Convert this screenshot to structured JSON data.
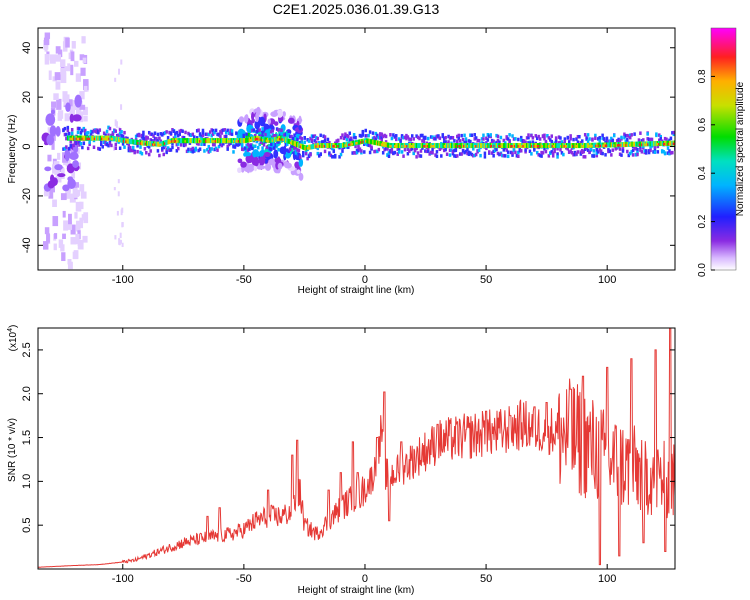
{
  "page_title": "C2E1.2025.036.01.39.G13",
  "colors": {
    "snr_line": "#e53935",
    "axis": "#000000"
  },
  "chart_data": [
    {
      "type": "heatmap",
      "title": "C2E1.2025.036.01.39.G13",
      "xlabel": "Height of straight line (km)",
      "ylabel": "Frequency (Hz)",
      "xlim": [
        -135,
        128
      ],
      "ylim": [
        -50,
        48
      ],
      "x_ticks": [
        -100,
        -50,
        0,
        50,
        100
      ],
      "x_tick_labels": [
        "-100",
        "-50",
        "0",
        "50",
        "100"
      ],
      "y_ticks": [
        -40,
        -20,
        0,
        20,
        40
      ],
      "y_tick_labels": [
        "-40",
        "-20",
        "0",
        "20",
        "40"
      ],
      "colorbar": {
        "label": "Normalized spectral amplitude",
        "range": [
          0,
          1
        ],
        "ticks": [
          0,
          0.2,
          0.4,
          0.6,
          0.8
        ],
        "tick_labels": [
          "0.0",
          "0.2",
          "0.4",
          "0.6",
          "0.8"
        ],
        "colormap": "rainbow (white-purple-blue-cyan-green-yellow-red-magenta)"
      },
      "band_center_hz": [
        [
          -118,
          3
        ],
        [
          -105,
          3
        ],
        [
          -100,
          2
        ],
        [
          -92,
          1
        ],
        [
          -85,
          0.5
        ],
        [
          -80,
          2
        ],
        [
          -72,
          2
        ],
        [
          -60,
          2
        ],
        [
          -50,
          2
        ],
        [
          -45,
          3
        ],
        [
          -40,
          2
        ],
        [
          -35,
          3
        ],
        [
          -30,
          1
        ],
        [
          -25,
          -1
        ],
        [
          -20,
          0
        ],
        [
          -10,
          0
        ],
        [
          0,
          2
        ],
        [
          10,
          0
        ],
        [
          30,
          0
        ],
        [
          60,
          0
        ],
        [
          90,
          0
        ],
        [
          128,
          1
        ]
      ]
    },
    {
      "type": "line",
      "xlabel": "Height of straight line (km)",
      "ylabel": "SNR (10 * v/v)",
      "y_scale_note": "(x10",
      "y_scale_exp": "4",
      "xlim": [
        -135,
        128
      ],
      "ylim": [
        0,
        2.75
      ],
      "x_ticks": [
        -100,
        -50,
        0,
        50,
        100
      ],
      "x_tick_labels": [
        "-100",
        "-50",
        "0",
        "50",
        "100"
      ],
      "y_ticks": [
        0.5,
        1.0,
        1.5,
        2.0,
        2.5
      ],
      "y_tick_labels": [
        "0.5",
        "1.0",
        "1.5",
        "2.0",
        "2.5"
      ],
      "series": [
        {
          "color": "#e53935",
          "x": [
            -135,
            -120,
            -110,
            -100,
            -95,
            -90,
            -85,
            -80,
            -75,
            -70,
            -65,
            -60,
            -55,
            -50,
            -45,
            -40,
            -35,
            -30,
            -27,
            -25,
            -20,
            -15,
            -10,
            -5,
            0,
            3,
            5,
            7,
            8,
            10,
            15,
            20,
            25,
            30,
            40,
            50,
            55,
            60,
            65,
            70,
            75,
            80,
            85,
            90,
            95,
            100,
            105,
            110,
            115,
            120,
            125,
            128
          ],
          "y": [
            0.02,
            0.04,
            0.05,
            0.08,
            0.1,
            0.15,
            0.2,
            0.25,
            0.3,
            0.33,
            0.36,
            0.38,
            0.4,
            0.45,
            0.55,
            0.6,
            0.6,
            0.65,
            0.9,
            0.5,
            0.4,
            0.55,
            0.7,
            0.8,
            0.9,
            1.05,
            1.2,
            1.6,
            1.1,
            1.05,
            1.15,
            1.25,
            1.35,
            1.45,
            1.5,
            1.55,
            1.55,
            1.6,
            1.65,
            1.6,
            1.6,
            1.55,
            1.5,
            1.45,
            1.35,
            1.25,
            1.2,
            1.15,
            1.1,
            1.05,
            1.0,
            1.0
          ],
          "peaks": [
            [
              -65,
              0.6
            ],
            [
              -60,
              0.7
            ],
            [
              -40,
              0.9
            ],
            [
              -30,
              1.3
            ],
            [
              -28,
              1.47
            ],
            [
              -15,
              0.9
            ],
            [
              -10,
              1.1
            ],
            [
              -5,
              1.45
            ],
            [
              -3,
              1.1
            ],
            [
              5,
              1.5
            ],
            [
              8,
              2.02
            ],
            [
              10,
              0.55
            ],
            [
              15,
              1.45
            ],
            [
              30,
              1.65
            ],
            [
              50,
              1.8
            ],
            [
              60,
              1.75
            ],
            [
              70,
              1.85
            ],
            [
              75,
              1.9
            ],
            [
              85,
              2.05
            ],
            [
              90,
              2.2
            ],
            [
              97,
              0.05
            ],
            [
              100,
              2.3
            ],
            [
              105,
              0.15
            ],
            [
              110,
              2.4
            ],
            [
              115,
              0.3
            ],
            [
              120,
              2.5
            ],
            [
              124,
              0.2
            ],
            [
              126,
              2.75
            ]
          ]
        }
      ]
    }
  ]
}
